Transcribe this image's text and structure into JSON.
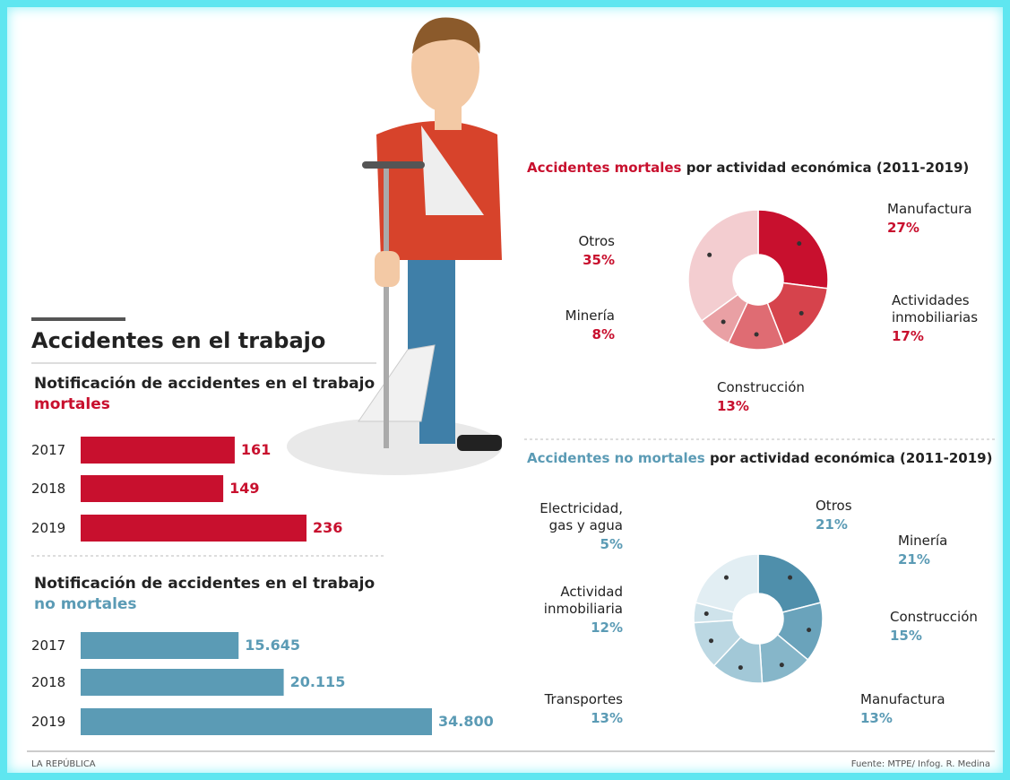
{
  "title": "Accidentes en el trabajo",
  "publisher": "LA REPÚBLICA",
  "source": "Fuente: MTPE/ Infog. R. Medina",
  "chart_data": [
    {
      "type": "bar",
      "title": "Notificación de accidentes en el trabajo",
      "subtitle": "mortales",
      "categories": [
        "2017",
        "2018",
        "2019"
      ],
      "values": [
        161,
        149,
        236
      ],
      "color": "#c8102e"
    },
    {
      "type": "bar",
      "title": "Notificación de accidentes en el trabajo",
      "subtitle": "no mortales",
      "categories": [
        "2017",
        "2018",
        "2019"
      ],
      "values": [
        15645,
        20115,
        34800
      ],
      "value_labels": [
        "15.645",
        "20.115",
        "34.800"
      ],
      "color": "#5b9bb5"
    },
    {
      "type": "donut",
      "title_highlight": "Accidentes mortales",
      "title": "por actividad económica (2011-2019)",
      "categories": [
        "Manufactura",
        "Actividades inmobiliarias",
        "Construcción",
        "Minería",
        "Otros"
      ],
      "values": [
        27,
        17,
        13,
        8,
        35
      ],
      "value_labels": [
        "27%",
        "17%",
        "13%",
        "8%",
        "35%"
      ],
      "colors": [
        "#c8102e",
        "#d6434c",
        "#df6c73",
        "#e9a0a4",
        "#f3cdd0"
      ],
      "color": "#c8102e"
    },
    {
      "type": "donut",
      "title_highlight": "Accidentes no mortales",
      "title": "por actividad económica (2011-2019)",
      "categories": [
        "Minería",
        "Construcción",
        "Manufactura",
        "Transportes",
        "Actividad inmobiliaria",
        "Electricidad, gas y agua",
        "Otros"
      ],
      "values": [
        21,
        15,
        13,
        13,
        12,
        5,
        21
      ],
      "value_labels": [
        "21%",
        "15%",
        "13%",
        "13%",
        "12%",
        "5%",
        "21%"
      ],
      "colors": [
        "#4f8fab",
        "#6aa3bb",
        "#86b6c9",
        "#a2c8d7",
        "#bcd8e3",
        "#cfe3eb",
        "#e2eef3"
      ],
      "color": "#5b9bb5"
    }
  ]
}
